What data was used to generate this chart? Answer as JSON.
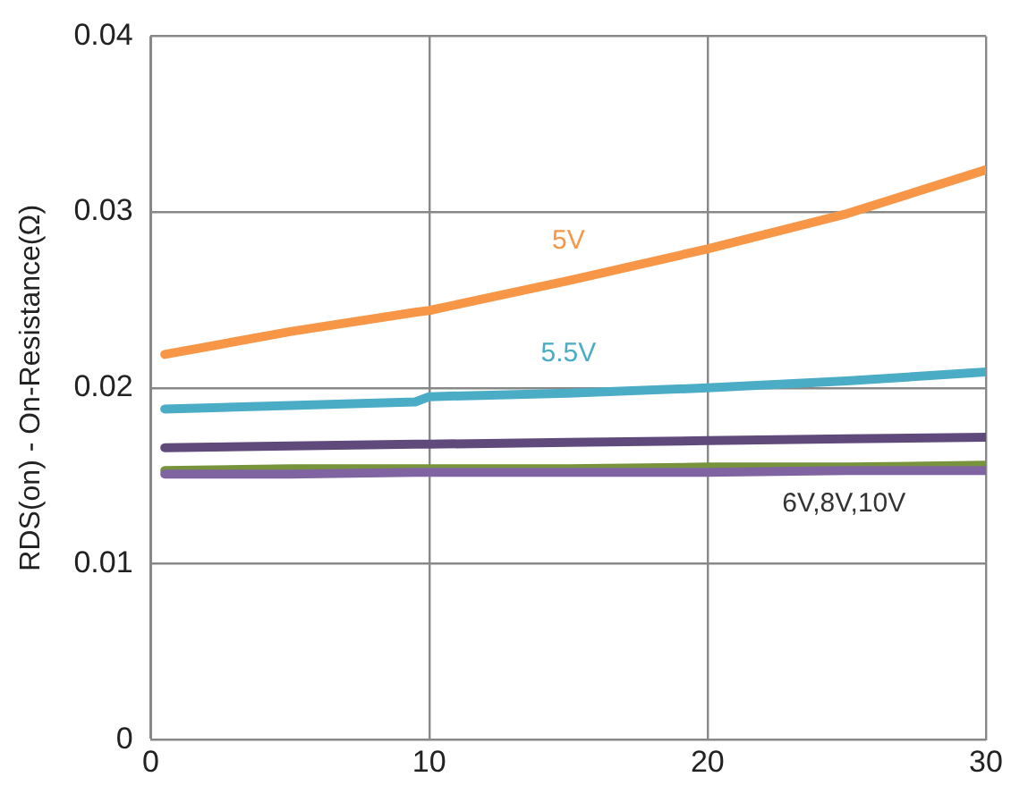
{
  "chart_data": {
    "type": "line",
    "ylabel": "RDS(on) - On-Resistance(Ω)",
    "x": [
      0.5,
      5,
      9.5,
      10,
      15,
      20,
      25,
      30
    ],
    "series": [
      {
        "name": "5V",
        "color": "#f79646",
        "values": [
          0.0219,
          0.0232,
          0.0243,
          0.0244,
          0.0261,
          0.0279,
          0.0299,
          0.0324
        ]
      },
      {
        "name": "5.5V",
        "color": "#4bacc6",
        "values": [
          0.0188,
          0.019,
          0.0192,
          0.0195,
          0.0197,
          0.02,
          0.0204,
          0.0209
        ]
      },
      {
        "color": "#604a7b",
        "values": [
          0.0166,
          0.0167,
          0.0168,
          0.0168,
          0.0169,
          0.017,
          0.0171,
          0.0172
        ]
      },
      {
        "color": "#8064a2",
        "values": [
          0.0151,
          0.0151,
          0.0152,
          0.0152,
          0.0152,
          0.0152,
          0.0153,
          0.0153
        ]
      },
      {
        "color": "#77933c",
        "values": [
          0.0153,
          0.0154,
          0.0154,
          0.0154,
          0.0154,
          0.0155,
          0.0155,
          0.0156
        ]
      }
    ],
    "annotations": [
      "6V,8V,10V"
    ],
    "xlim": [
      0,
      30
    ],
    "xticks": [
      0,
      10,
      20,
      30
    ],
    "ylim": [
      0,
      0.04
    ],
    "yticks": [
      0,
      0.01,
      0.02,
      0.03,
      0.04
    ],
    "grid": true,
    "legend": false,
    "marker": "none",
    "line_style": "solid"
  }
}
